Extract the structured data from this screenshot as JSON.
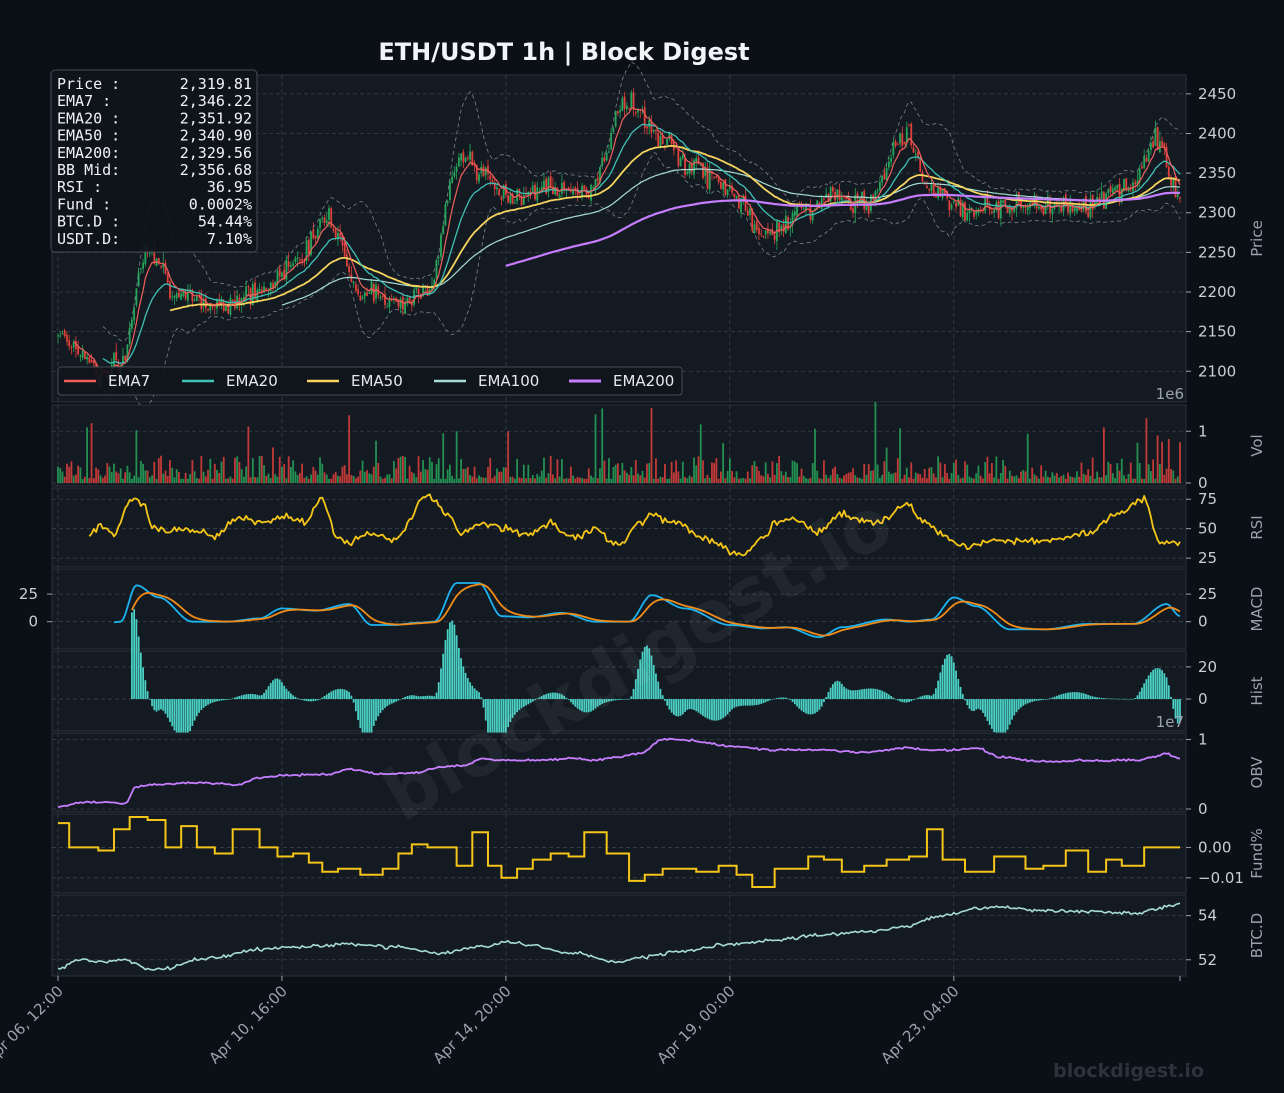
{
  "title": "ETH/USDT  1h  |  Block Digest",
  "watermark": "blockdigest.io",
  "footer_brand": "blockdigest.io",
  "info_box": [
    {
      "label": "Price :",
      "value": "2,319.81"
    },
    {
      "label": "EMA7  :",
      "value": "2,346.22"
    },
    {
      "label": "EMA20 :",
      "value": "2,351.92"
    },
    {
      "label": "EMA50 :",
      "value": "2,340.90"
    },
    {
      "label": "EMA200:",
      "value": "2,329.56"
    },
    {
      "label": "BB Mid:",
      "value": "2,356.68"
    },
    {
      "label": "RSI   :",
      "value": "36.95"
    },
    {
      "label": "Fund  :",
      "value": "0.0002%"
    },
    {
      "label": "BTC.D :",
      "value": "54.44%"
    },
    {
      "label": "USDT.D:",
      "value": "7.10%"
    }
  ],
  "colors": {
    "background": "#0b0f16",
    "panel": "#141a22",
    "grid": "#3a424d",
    "candle_up": "#26a65b",
    "candle_down": "#e0413b",
    "ema7": "#f0605d",
    "ema20": "#3fc1b6",
    "ema50": "#f6d45e",
    "ema100": "#a7dcd5",
    "ema200": "#c77dff",
    "rsi": "#f5c518",
    "macd": "#1cb3f0",
    "signal": "#f28c18",
    "hist": "#4ad0c4",
    "obv": "#c77dff",
    "funding": "#f5c518",
    "btcd": "#a7dcd5",
    "text": "#9aa3ad"
  },
  "chart_data": {
    "type": "line",
    "x_ticks": [
      "Apr 06, 12:00",
      "Apr 10, 16:00",
      "Apr 14, 20:00",
      "Apr 19, 00:00",
      "Apr 23, 04:00"
    ],
    "x_tick_index": [
      0,
      100,
      200,
      300,
      400
    ],
    "n_bars": 502,
    "panels": [
      {
        "id": "price",
        "ylabel": "Price",
        "ylim": [
          2065,
          2470
        ],
        "ticks": [
          2100,
          2150,
          2200,
          2250,
          2300,
          2350,
          2400,
          2450
        ],
        "tick_side": "right"
      },
      {
        "id": "vol",
        "ylabel": "Vol",
        "ylim": [
          0,
          1.45
        ],
        "ticks": [
          0,
          1
        ],
        "offset_label": "1e6",
        "tick_side": "right"
      },
      {
        "id": "rsi",
        "ylabel": "RSI",
        "ylim": [
          20,
          82
        ],
        "ticks": [
          25,
          50,
          75
        ],
        "tick_side": "right"
      },
      {
        "id": "macd",
        "ylabel": "MACD",
        "ylim": [
          -22,
          45
        ],
        "ticks": [
          0,
          25
        ],
        "tick_side": "both"
      },
      {
        "id": "hist",
        "ylabel": "Hist",
        "ylim": [
          -18,
          28
        ],
        "ticks": [
          0,
          20
        ],
        "tick_side": "right"
      },
      {
        "id": "obv",
        "ylabel": "OBV",
        "ylim": [
          0,
          1.05
        ],
        "ticks": [
          0,
          1
        ],
        "offset_label": "1e7",
        "tick_side": "right"
      },
      {
        "id": "fund",
        "ylabel": "Fund%",
        "ylim": [
          -0.014,
          0.01
        ],
        "ticks": [
          0.0,
          -0.01
        ],
        "tick_labels": [
          "0.00",
          "−0.01"
        ],
        "tick_side": "right"
      },
      {
        "id": "btcd",
        "ylabel": "BTC.D",
        "ylim": [
          51.4,
          54.8
        ],
        "ticks": [
          52,
          54
        ],
        "tick_side": "right"
      }
    ],
    "legend": {
      "placement": "lower-left",
      "entries": [
        "EMA7",
        "EMA20",
        "EMA50",
        "EMA100",
        "EMA200"
      ]
    },
    "price_path": {
      "idx": [
        0,
        10,
        20,
        28,
        40,
        55,
        70,
        90,
        110,
        120,
        135,
        150,
        165,
        180,
        190,
        200,
        215,
        235,
        255,
        270,
        282,
        300,
        315,
        330,
        345,
        360,
        378,
        390,
        405,
        430,
        460,
        480,
        490,
        501
      ],
      "value": [
        2150,
        2125,
        2095,
        2110,
        2260,
        2190,
        2185,
        2200,
        2250,
        2300,
        2200,
        2190,
        2200,
        2380,
        2345,
        2320,
        2330,
        2325,
        2440,
        2390,
        2360,
        2330,
        2270,
        2300,
        2320,
        2310,
        2400,
        2330,
        2305,
        2310,
        2310,
        2335,
        2395,
        2320
      ]
    },
    "macd_path": {
      "idx": [
        0,
        5,
        10,
        18,
        28,
        35,
        45,
        60,
        75,
        90,
        100,
        115,
        130,
        140,
        150,
        160,
        168,
        178,
        188,
        198,
        210,
        225,
        240,
        255,
        265,
        280,
        300,
        315,
        325,
        340,
        350,
        370,
        380,
        390,
        400,
        410,
        425,
        440,
        460,
        480,
        495,
        501
      ],
      "value": [
        -5,
        -4,
        -4,
        -3,
        0,
        33,
        22,
        0,
        0,
        3,
        12,
        10,
        16,
        -3,
        -3,
        -1,
        0,
        35,
        35,
        5,
        4,
        8,
        0,
        0,
        24,
        12,
        -3,
        -6,
        -5,
        -14,
        -5,
        2,
        0,
        2,
        22,
        14,
        -7,
        -7,
        -2,
        -2,
        16,
        5
      ]
    },
    "rsi_path": {
      "idx": [
        0,
        10,
        20,
        25,
        32,
        38,
        42,
        50,
        60,
        70,
        80,
        90,
        100,
        110,
        118,
        125,
        130,
        140,
        150,
        165,
        175,
        180,
        190,
        200,
        210,
        220,
        230,
        240,
        250,
        260,
        265,
        275,
        290,
        305,
        315,
        320,
        330,
        340,
        350,
        365,
        380,
        385,
        395,
        405,
        420,
        440,
        460,
        475,
        485,
        492,
        501
      ],
      "value": [
        30,
        40,
        52,
        45,
        75,
        72,
        50,
        48,
        50,
        43,
        60,
        55,
        60,
        55,
        75,
        42,
        38,
        45,
        40,
        78,
        60,
        45,
        55,
        50,
        45,
        55,
        42,
        50,
        35,
        55,
        62,
        55,
        40,
        28,
        42,
        55,
        57,
        48,
        62,
        55,
        70,
        58,
        45,
        35,
        40,
        40,
        46,
        65,
        75,
        38,
        38
      ]
    },
    "funding_path": {
      "idx": [
        0,
        5,
        10,
        18,
        25,
        32,
        40,
        48,
        55,
        62,
        70,
        78,
        85,
        90,
        98,
        105,
        112,
        118,
        125,
        135,
        145,
        152,
        158,
        165,
        172,
        178,
        185,
        192,
        198,
        205,
        212,
        220,
        228,
        235,
        245,
        255,
        262,
        270,
        278,
        285,
        295,
        303,
        310,
        320,
        328,
        335,
        342,
        350,
        360,
        370,
        380,
        388,
        395,
        405,
        418,
        432,
        440,
        450,
        460,
        468,
        475,
        485,
        501
      ],
      "value": [
        0.008,
        0.0,
        0.0,
        -0.001,
        0.006,
        0.01,
        0.009,
        0.0,
        0.007,
        0.0,
        -0.002,
        0.006,
        0.006,
        0.0,
        -0.003,
        -0.002,
        -0.005,
        -0.008,
        -0.007,
        -0.009,
        -0.007,
        -0.002,
        0.001,
        0.0,
        0.0,
        -0.006,
        0.005,
        -0.006,
        -0.01,
        -0.007,
        -0.004,
        -0.002,
        -0.003,
        0.005,
        -0.002,
        -0.011,
        -0.009,
        -0.007,
        -0.007,
        -0.008,
        -0.006,
        -0.009,
        -0.013,
        -0.007,
        -0.007,
        -0.003,
        -0.004,
        -0.008,
        -0.006,
        -0.004,
        -0.003,
        0.006,
        -0.004,
        -0.008,
        -0.003,
        -0.007,
        -0.006,
        -0.001,
        -0.008,
        -0.004,
        -0.006,
        0.0,
        0.0
      ]
    },
    "obv_path": {
      "idx": [
        0,
        10,
        20,
        30,
        35,
        45,
        60,
        80,
        90,
        100,
        120,
        130,
        145,
        160,
        170,
        180,
        190,
        200,
        215,
        230,
        240,
        250,
        260,
        270,
        280,
        290,
        300,
        320,
        340,
        360,
        380,
        390,
        400,
        410,
        420,
        440,
        460,
        480,
        490,
        495,
        501
      ],
      "value": [
        0.02,
        0.1,
        0.1,
        0.08,
        0.32,
        0.35,
        0.38,
        0.35,
        0.45,
        0.48,
        0.5,
        0.57,
        0.5,
        0.52,
        0.6,
        0.62,
        0.72,
        0.7,
        0.7,
        0.73,
        0.7,
        0.75,
        0.8,
        1.0,
        1.0,
        0.95,
        0.9,
        0.85,
        0.85,
        0.82,
        0.88,
        0.85,
        0.85,
        0.88,
        0.75,
        0.68,
        0.7,
        0.7,
        0.75,
        0.8,
        0.72
      ]
    },
    "btcd_path": {
      "idx": [
        0,
        10,
        20,
        30,
        40,
        50,
        60,
        70,
        90,
        110,
        130,
        150,
        170,
        190,
        200,
        210,
        230,
        250,
        260,
        280,
        300,
        320,
        340,
        360,
        380,
        390,
        400,
        410,
        420,
        440,
        460,
        480,
        501
      ],
      "value": [
        51.6,
        52.0,
        51.9,
        52.0,
        51.6,
        51.6,
        52.0,
        52.1,
        52.5,
        52.6,
        52.7,
        52.6,
        52.3,
        52.6,
        52.8,
        52.7,
        52.3,
        51.9,
        52.1,
        52.4,
        52.7,
        52.9,
        53.1,
        53.3,
        53.5,
        53.9,
        54.1,
        54.3,
        54.4,
        54.2,
        54.2,
        54.1,
        54.5
      ]
    }
  }
}
